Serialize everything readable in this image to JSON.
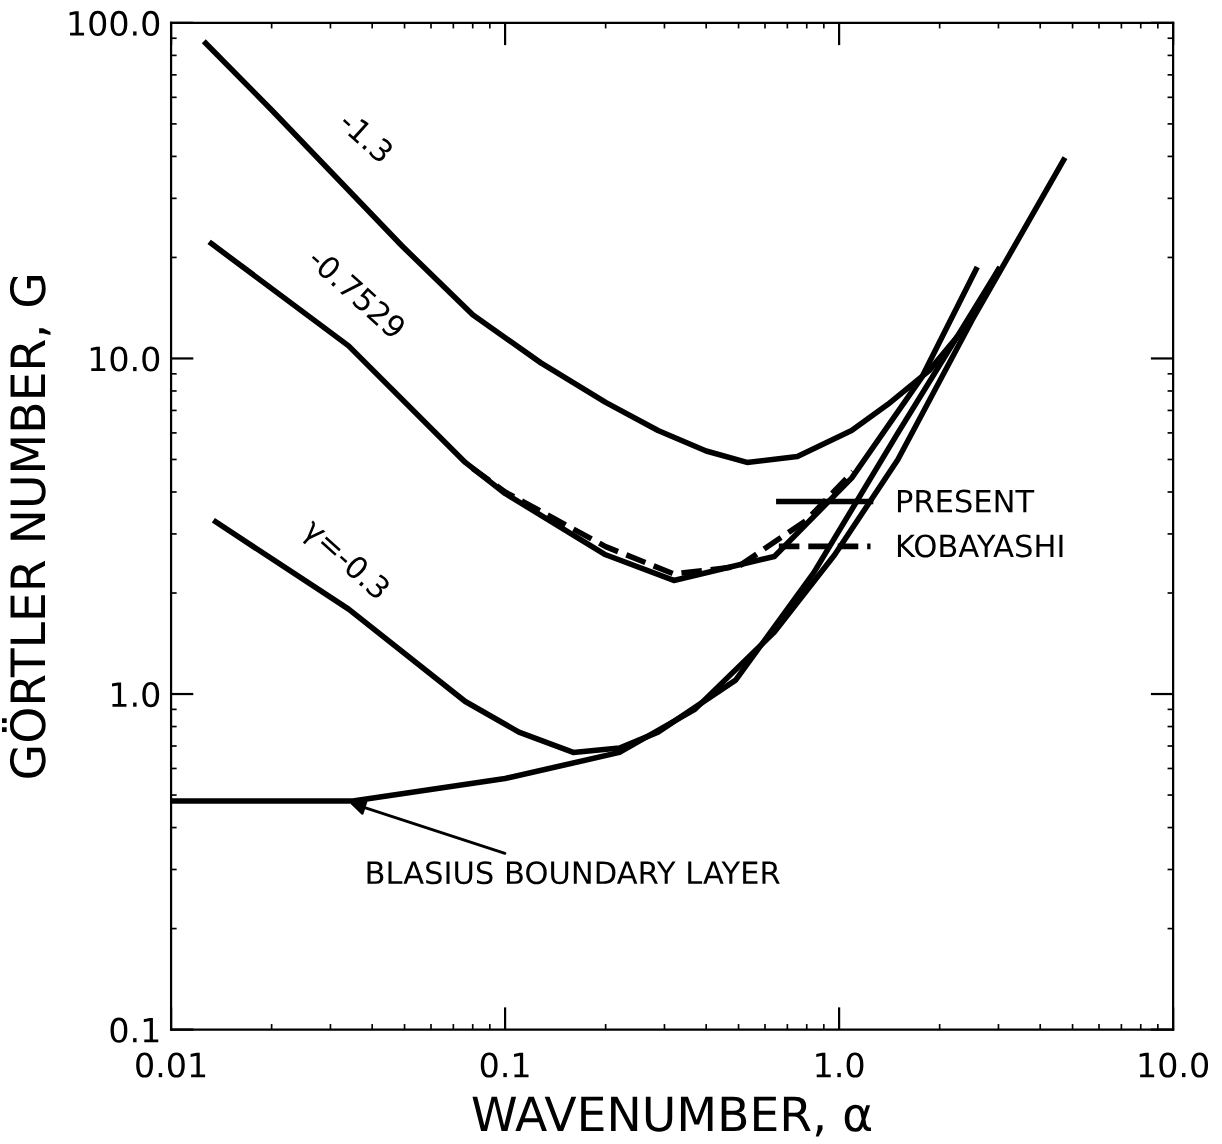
{
  "chart_data": {
    "type": "line",
    "xlabel": "WAVENUMBER, α",
    "ylabel": "GÖRTLER NUMBER, G",
    "log": "xy",
    "xlim": [
      0.01,
      10
    ],
    "ylim": [
      0.1,
      100
    ],
    "xticks": [
      {
        "value": 0.01,
        "label": "0.01"
      },
      {
        "value": 0.1,
        "label": "0.1"
      },
      {
        "value": 1,
        "label": "1.0"
      },
      {
        "value": 10,
        "label": "10.0"
      }
    ],
    "yticks": [
      {
        "value": 0.1,
        "label": "0.1"
      },
      {
        "value": 1,
        "label": "1.0"
      },
      {
        "value": 10,
        "label": "10.0"
      },
      {
        "value": 100,
        "label": "100.0"
      }
    ],
    "grid": false,
    "legend": "right",
    "marker": "none",
    "series": [
      {
        "name": "PRESENT",
        "color": "#000000",
        "line_style": "solid",
        "x": [
          0.0127,
          0.02,
          0.049,
          0.08,
          0.128,
          0.2,
          0.287,
          0.4,
          0.53,
          0.75,
          1.09,
          1.4,
          1.86,
          2.4,
          3.0
        ],
        "values": [
          87,
          55,
          21.7,
          13.5,
          9.7,
          7.4,
          6.1,
          5.3,
          4.9,
          5.1,
          6.1,
          7.3,
          9.2,
          12.5,
          18.4
        ]
      },
      {
        "color": "#000000",
        "line_style": "solid",
        "x": [
          0.0132,
          0.034,
          0.076,
          0.1,
          0.2,
          0.32,
          0.64,
          1.09,
          1.77,
          2.57
        ],
        "values": [
          22,
          10.9,
          4.9,
          3.96,
          2.6,
          2.18,
          2.57,
          4.4,
          8.8,
          18.4
        ]
      },
      {
        "color": "#000000",
        "line_style": "solid",
        "x": [
          0.0136,
          0.034,
          0.076,
          0.11,
          0.16,
          0.22,
          0.287,
          0.49,
          0.84,
          1.5,
          3.0
        ],
        "values": [
          3.26,
          1.79,
          0.95,
          0.77,
          0.67,
          0.69,
          0.77,
          1.1,
          2.3,
          6.0,
          18.4
        ]
      },
      {
        "color": "#000000",
        "line_style": "solid",
        "x": [
          0.01,
          0.035,
          0.1,
          0.22,
          0.37,
          0.64,
          0.97,
          1.5,
          2.5,
          4.7
        ],
        "values": [
          0.48,
          0.48,
          0.56,
          0.67,
          0.9,
          1.53,
          2.6,
          5.0,
          13,
          39
        ]
      },
      {
        "name": "KOBAYASHI",
        "color": "#000000",
        "line_style": "dashed",
        "x": [
          0.08,
          0.1,
          0.2,
          0.32,
          0.5,
          0.8,
          1.1
        ],
        "values": [
          4.7,
          4.0,
          2.75,
          2.28,
          2.4,
          3.3,
          4.6
        ]
      }
    ],
    "annotations": [
      {
        "text": "-1.3",
        "x": 0.032,
        "y": 38
      },
      {
        "text": "-0.7529",
        "x": 0.03,
        "y": 13
      },
      {
        "text": "γ=-0.3",
        "x": 0.028,
        "y": 2.1
      },
      {
        "text": "BLASIUS BOUNDARY LAYER",
        "x": 0.033,
        "y": 0.48
      }
    ]
  }
}
